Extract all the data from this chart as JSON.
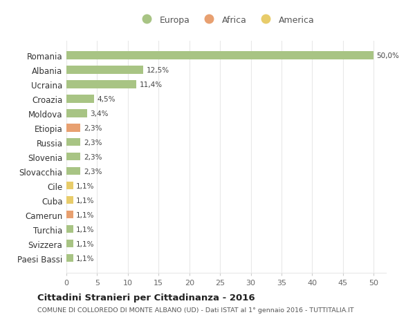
{
  "categories": [
    "Paesi Bassi",
    "Svizzera",
    "Turchia",
    "Camerun",
    "Cuba",
    "Cile",
    "Slovacchia",
    "Slovenia",
    "Russia",
    "Etiopia",
    "Moldova",
    "Croazia",
    "Ucraina",
    "Albania",
    "Romania"
  ],
  "values": [
    1.1,
    1.1,
    1.1,
    1.1,
    1.1,
    1.1,
    2.3,
    2.3,
    2.3,
    2.3,
    3.4,
    4.5,
    11.4,
    12.5,
    50.0
  ],
  "labels": [
    "1,1%",
    "1,1%",
    "1,1%",
    "1,1%",
    "1,1%",
    "1,1%",
    "2,3%",
    "2,3%",
    "2,3%",
    "2,3%",
    "3,4%",
    "4,5%",
    "11,4%",
    "12,5%",
    "50,0%"
  ],
  "colors": [
    "#a8c484",
    "#a8c484",
    "#a8c484",
    "#e8a070",
    "#e8cc6a",
    "#e8cc6a",
    "#a8c484",
    "#a8c484",
    "#a8c484",
    "#e8a070",
    "#a8c484",
    "#a8c484",
    "#a8c484",
    "#a8c484",
    "#a8c484"
  ],
  "legend_labels": [
    "Europa",
    "Africa",
    "America"
  ],
  "legend_colors": [
    "#a8c484",
    "#e8a070",
    "#e8cc6a"
  ],
  "title_bold": "Cittadini Stranieri per Cittadinanza - 2016",
  "subtitle": "COMUNE DI COLLOREDO DI MONTE ALBANO (UD) - Dati ISTAT al 1° gennaio 2016 - TUTTITALIA.IT",
  "xlim": [
    0,
    52
  ],
  "xticks": [
    0,
    5,
    10,
    15,
    20,
    25,
    30,
    35,
    40,
    45,
    50
  ],
  "bg_color": "#ffffff",
  "grid_color": "#e8e8e8",
  "bar_height": 0.55
}
